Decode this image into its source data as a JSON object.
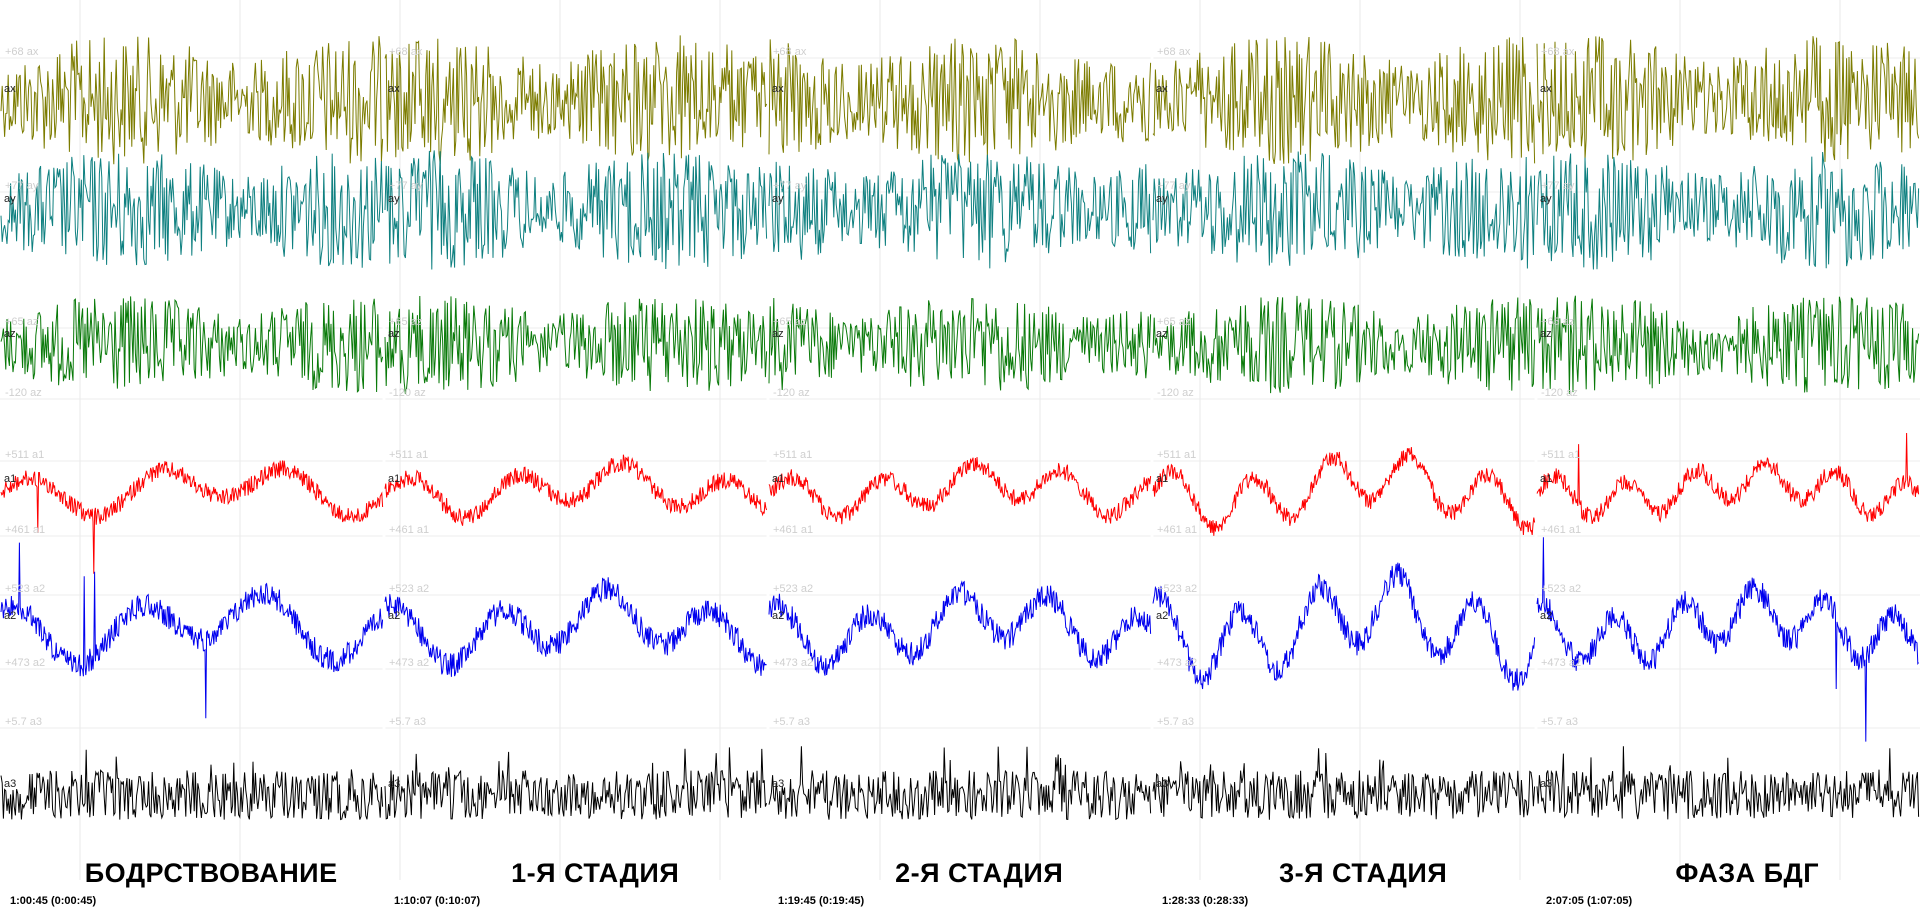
{
  "chart_data": {
    "type": "line",
    "description_note": "",
    "channels": [
      {
        "name": "ax",
        "color": "#7c7c00",
        "scale_top": "+68 ax",
        "scale_bottom": ""
      },
      {
        "name": "ay",
        "color": "#0f8080",
        "scale_top": "+77 ay",
        "scale_bottom": ""
      },
      {
        "name": "az",
        "color": "#0a7a0a",
        "scale_top": "+65 az",
        "scale_bottom": "-120 az"
      },
      {
        "name": "a1",
        "color": "#ff0000",
        "scale_top": "+511 a1",
        "scale_bottom": "+461 a1"
      },
      {
        "name": "a2",
        "color": "#0000ee",
        "scale_top": "+523 a2",
        "scale_bottom": "+473 a2"
      },
      {
        "name": "a3",
        "color": "#000000",
        "scale_top": "+5.7 a3",
        "scale_bottom": ""
      }
    ],
    "panels": [
      {
        "stage": "БОДРСТВОВАНИЕ",
        "time": "1:00:45 (0:00:45)"
      },
      {
        "stage": "1-Я СТАДИЯ",
        "time": "1:10:07 (0:10:07)"
      },
      {
        "stage": "2-Я СТАДИЯ",
        "time": "1:19:45 (0:19:45)"
      },
      {
        "stage": "3-Я СТАДИЯ",
        "time": "1:28:33 (0:28:33)"
      },
      {
        "stage": "ФАЗА БДГ",
        "time": "2:07:05 (1:07:05)"
      }
    ],
    "grid": true
  }
}
